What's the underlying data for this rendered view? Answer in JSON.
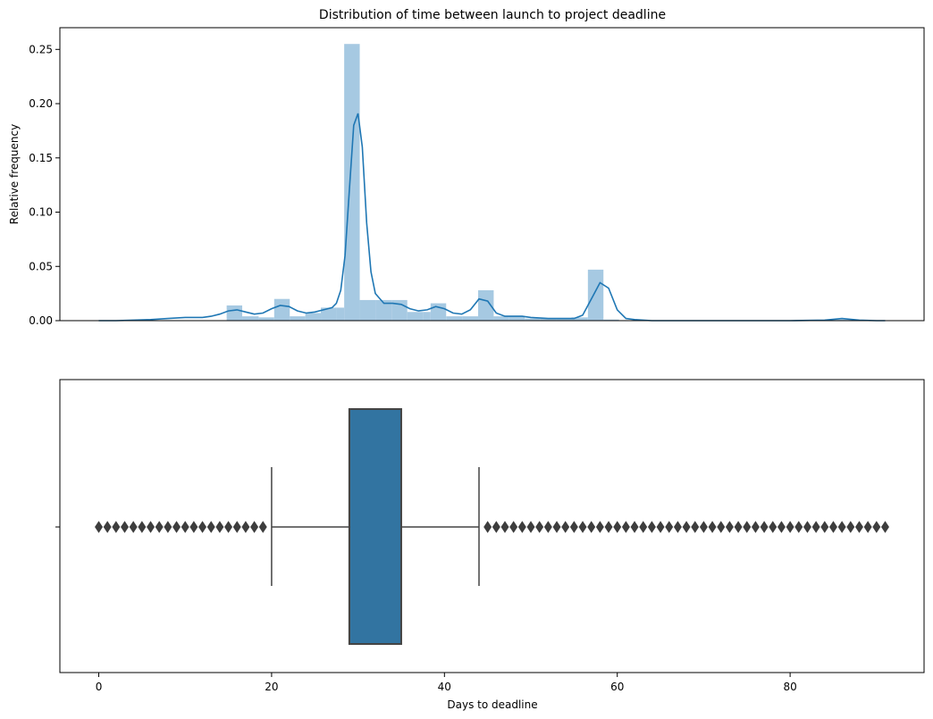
{
  "chart_data": [
    {
      "type": "histogram",
      "title": "Distribution of time between launch to project deadline",
      "xlabel": "",
      "ylabel": "Relative frequency",
      "ylim": [
        0,
        0.27
      ],
      "xlim": [
        -4.5,
        95.5
      ],
      "yticks": [
        "0.00",
        "0.05",
        "0.10",
        "0.15",
        "0.20",
        "0.25"
      ],
      "ytick_values": [
        0,
        0.05,
        0.1,
        0.15,
        0.2,
        0.25
      ],
      "grid": false,
      "legend": "none",
      "color": "#a6c9e2",
      "line_color": "#1f77b4",
      "bins": [
        {
          "x0": 14.8,
          "x1": 16.6,
          "value": 0.014
        },
        {
          "x0": 16.6,
          "x1": 18.5,
          "value": 0.004
        },
        {
          "x0": 18.5,
          "x1": 20.3,
          "value": 0.003
        },
        {
          "x0": 20.3,
          "x1": 22.1,
          "value": 0.02
        },
        {
          "x0": 22.1,
          "x1": 23.9,
          "value": 0.004
        },
        {
          "x0": 23.9,
          "x1": 25.7,
          "value": 0.007
        },
        {
          "x0": 25.7,
          "x1": 27.5,
          "value": 0.012
        },
        {
          "x0": 27.5,
          "x1": 28.4,
          "value": 0.012
        },
        {
          "x0": 28.4,
          "x1": 30.2,
          "value": 0.255
        },
        {
          "x0": 30.2,
          "x1": 32.1,
          "value": 0.019
        },
        {
          "x0": 32.1,
          "x1": 33.9,
          "value": 0.019
        },
        {
          "x0": 33.9,
          "x1": 35.7,
          "value": 0.019
        },
        {
          "x0": 35.7,
          "x1": 37.5,
          "value": 0.008
        },
        {
          "x0": 37.5,
          "x1": 38.4,
          "value": 0.008
        },
        {
          "x0": 38.4,
          "x1": 40.2,
          "value": 0.016
        },
        {
          "x0": 40.2,
          "x1": 42.1,
          "value": 0.004
        },
        {
          "x0": 42.1,
          "x1": 43.9,
          "value": 0.004
        },
        {
          "x0": 43.9,
          "x1": 45.7,
          "value": 0.028
        },
        {
          "x0": 45.7,
          "x1": 47.5,
          "value": 0.004
        },
        {
          "x0": 47.5,
          "x1": 49.3,
          "value": 0.004
        },
        {
          "x0": 49.3,
          "x1": 51.1,
          "value": 0.002
        },
        {
          "x0": 51.1,
          "x1": 52.9,
          "value": 0.002
        },
        {
          "x0": 52.9,
          "x1": 54.7,
          "value": 0.002
        },
        {
          "x0": 54.7,
          "x1": 56.6,
          "value": 0.003
        },
        {
          "x0": 56.6,
          "x1": 58.4,
          "value": 0.047
        },
        {
          "x0": 58.4,
          "x1": 60.2,
          "value": 0.001
        },
        {
          "x0": 84.0,
          "x1": 86.0,
          "value": 0.001
        },
        {
          "x0": 86.0,
          "x1": 88.0,
          "value": 0.001
        }
      ],
      "kde": {
        "x": [
          0,
          2,
          4,
          6,
          8,
          10,
          12,
          13,
          14,
          15,
          16,
          17,
          18,
          19,
          20,
          21,
          22,
          23,
          24,
          25,
          26,
          27,
          27.5,
          28,
          28.5,
          29,
          29.5,
          30,
          30.5,
          31,
          31.5,
          32,
          33,
          34,
          35,
          36,
          37,
          38,
          39,
          40,
          41,
          42,
          43,
          44,
          45,
          46,
          47,
          48,
          49,
          50,
          52,
          54,
          55,
          56,
          57,
          58,
          59,
          60,
          61,
          62,
          64,
          70,
          80,
          84,
          86,
          88,
          90,
          91
        ],
        "y": [
          0,
          0,
          0.0005,
          0.001,
          0.002,
          0.003,
          0.003,
          0.004,
          0.006,
          0.009,
          0.01,
          0.008,
          0.006,
          0.007,
          0.011,
          0.014,
          0.013,
          0.009,
          0.007,
          0.008,
          0.01,
          0.012,
          0.016,
          0.028,
          0.06,
          0.12,
          0.18,
          0.191,
          0.16,
          0.09,
          0.045,
          0.025,
          0.016,
          0.016,
          0.015,
          0.011,
          0.009,
          0.01,
          0.013,
          0.011,
          0.007,
          0.006,
          0.01,
          0.02,
          0.018,
          0.007,
          0.004,
          0.004,
          0.004,
          0.003,
          0.002,
          0.002,
          0.002,
          0.005,
          0.02,
          0.035,
          0.03,
          0.01,
          0.002,
          0.001,
          0,
          0,
          0,
          0.0005,
          0.002,
          0.0005,
          0,
          0
        ]
      }
    },
    {
      "type": "boxplot",
      "title": "",
      "xlabel": "Days to deadline",
      "ylabel": "",
      "xlim": [
        -4.5,
        95.5
      ],
      "xticks": [
        "0",
        "20",
        "40",
        "60",
        "80"
      ],
      "xtick_values": [
        0,
        20,
        40,
        60,
        80
      ],
      "grid": false,
      "color": "#3274a1",
      "edge_color": "#444444",
      "stats": {
        "whisker_low": 20,
        "q1": 29,
        "median": 29,
        "q3": 35,
        "whisker_high": 44
      },
      "outliers_low": [
        0,
        1,
        2,
        3,
        4,
        5,
        6,
        7,
        8,
        9,
        10,
        11,
        12,
        13,
        14,
        15,
        16,
        17,
        18,
        19
      ],
      "outliers_high": [
        45,
        46,
        47,
        48,
        49,
        50,
        51,
        52,
        53,
        54,
        55,
        56,
        57,
        58,
        59,
        60,
        61,
        62,
        63,
        64,
        65,
        66,
        67,
        68,
        69,
        70,
        71,
        72,
        73,
        74,
        75,
        76,
        77,
        78,
        79,
        80,
        81,
        82,
        83,
        84,
        85,
        86,
        87,
        88,
        89,
        90,
        91
      ]
    }
  ]
}
